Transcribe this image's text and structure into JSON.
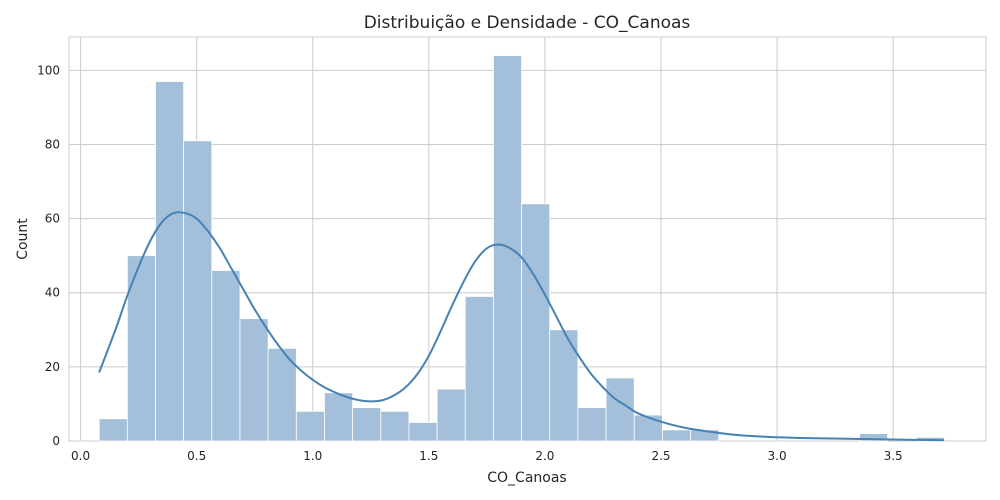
{
  "chart_data": {
    "type": "bar",
    "title": "Distribuição e Densidade - CO_Canoas",
    "xlabel": "CO_Canoas",
    "ylabel": "Count",
    "xlim": [
      -0.05,
      3.9
    ],
    "ylim": [
      0,
      109
    ],
    "xticks": [
      0.0,
      0.5,
      1.0,
      1.5,
      2.0,
      2.5,
      3.0,
      3.5
    ],
    "xtick_labels": [
      "0.0",
      "0.5",
      "1.0",
      "1.5",
      "2.0",
      "2.5",
      "3.0",
      "3.5"
    ],
    "yticks": [
      0,
      20,
      40,
      60,
      80,
      100
    ],
    "ytick_labels": [
      "0",
      "20",
      "40",
      "60",
      "80",
      "100"
    ],
    "grid": true,
    "bar_color": "#a3bfd9",
    "line_color": "#4682b4",
    "bins": {
      "start": 0.08,
      "width": 0.1213,
      "counts": [
        6,
        50,
        97,
        81,
        46,
        33,
        25,
        8,
        13,
        9,
        8,
        5,
        14,
        39,
        104,
        64,
        30,
        9,
        17,
        7,
        3,
        3,
        0,
        0,
        0,
        0,
        0,
        2,
        0,
        0
      ]
    },
    "bins_tail": [
      {
        "x0": 3.6,
        "x1": 3.72,
        "count": 1
      }
    ],
    "kde": {
      "x": [
        0.08,
        0.15,
        0.2,
        0.25,
        0.3,
        0.35,
        0.4,
        0.45,
        0.5,
        0.55,
        0.6,
        0.65,
        0.7,
        0.75,
        0.8,
        0.85,
        0.9,
        0.95,
        1.0,
        1.05,
        1.1,
        1.15,
        1.2,
        1.25,
        1.3,
        1.35,
        1.4,
        1.45,
        1.5,
        1.55,
        1.6,
        1.65,
        1.7,
        1.75,
        1.8,
        1.85,
        1.9,
        1.95,
        2.0,
        2.05,
        2.1,
        2.15,
        2.2,
        2.25,
        2.3,
        2.35,
        2.4,
        2.5,
        2.6,
        2.7,
        2.8,
        2.9,
        3.0,
        3.1,
        3.2,
        3.3,
        3.4,
        3.5,
        3.6,
        3.72
      ],
      "y": [
        18.5,
        30,
        39,
        47,
        54,
        59,
        61.5,
        61.5,
        60,
        56.5,
        52,
        46.5,
        41,
        35.5,
        30.5,
        26,
        22,
        19,
        16.5,
        14.5,
        13,
        11.8,
        11,
        10.7,
        11,
        12.3,
        14.5,
        18,
        23,
        29.5,
        36.5,
        43,
        48.5,
        52,
        53,
        52,
        49.5,
        45,
        39.5,
        33.5,
        27.5,
        22.5,
        18,
        14.5,
        11.5,
        9.5,
        7.5,
        5.2,
        3.6,
        2.6,
        1.8,
        1.3,
        1.0,
        0.8,
        0.7,
        0.6,
        0.5,
        0.4,
        0.3,
        0.2
      ]
    }
  }
}
